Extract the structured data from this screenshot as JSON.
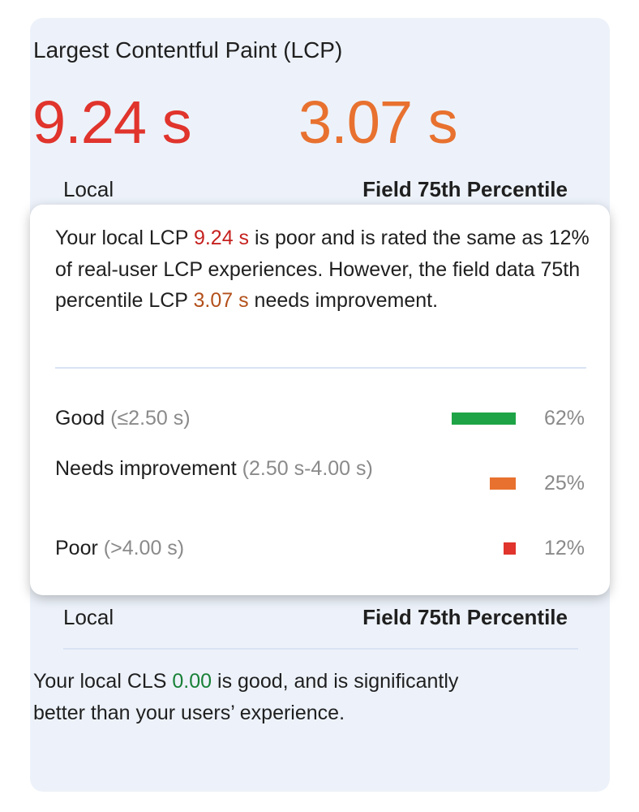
{
  "card": {
    "title": "Largest Contentful Paint (LCP)",
    "local_value": "9.24 s",
    "local_label": "Local",
    "field_value": "3.07 s",
    "field_label": "Field 75th Percentile",
    "colors": {
      "poor": "#e0342c",
      "needs_improvement": "#e8712f",
      "good": "#188038"
    }
  },
  "tooltip": {
    "text_1": "Your local LCP ",
    "local_value": "9.24 s",
    "text_2": " is poor and is rated the same as 12% of real-user LCP experiences. However, the field data 75th percentile LCP ",
    "field_value": "3.07 s",
    "text_3": " needs improvement.",
    "rows": [
      {
        "name": "Good",
        "range": "(≤2.50 s)",
        "percent": "62%",
        "fraction": 0.62,
        "color": "#1ea446"
      },
      {
        "name": "Needs improvement",
        "range": "(2.50 s-4.00 s)",
        "percent": "25%",
        "fraction": 0.25,
        "color": "#e8712f"
      },
      {
        "name": "Poor",
        "range": "(>4.00 s)",
        "percent": "12%",
        "fraction": 0.12,
        "color": "#e0342c"
      }
    ]
  },
  "cls": {
    "local_label": "Local",
    "field_label": "Field 75th Percentile",
    "text_1": "Your local CLS ",
    "value": "0.00",
    "text_2": " is good, and is significantly better than your users’ experience."
  }
}
